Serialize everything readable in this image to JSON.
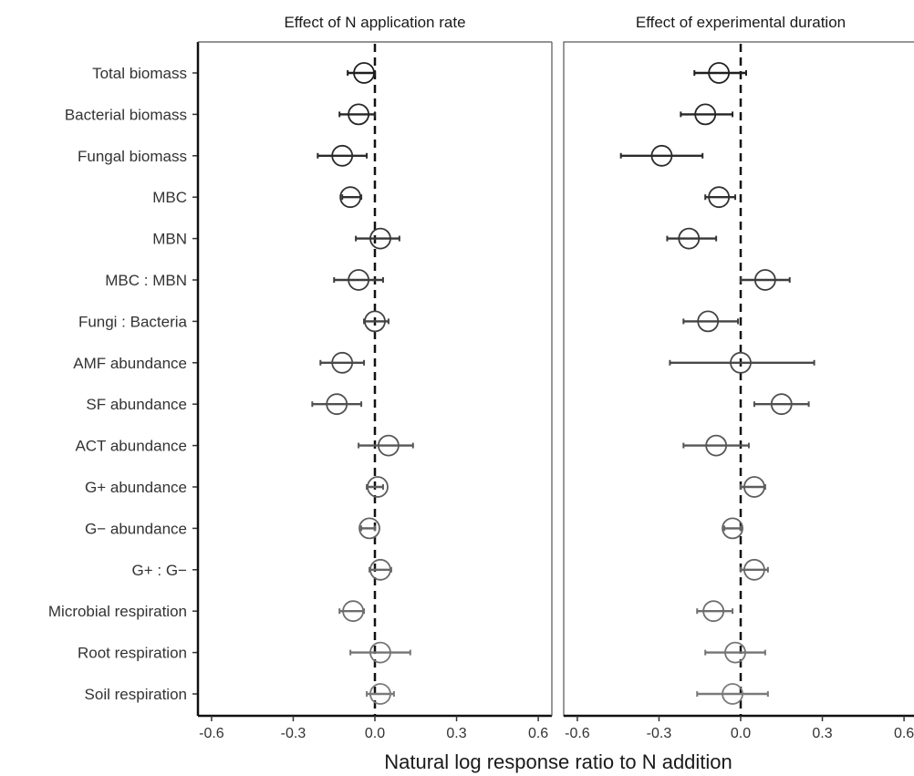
{
  "chart_data": {
    "type": "forest",
    "xlabel": "Natural log response ratio to N addition",
    "xlim": [
      -0.65,
      0.65
    ],
    "xticks": [
      -0.6,
      -0.3,
      0.0,
      0.3,
      0.6
    ],
    "xtick_labels": [
      "-0.6",
      "-0.3",
      "0.0",
      "0.3",
      "0.6"
    ],
    "reference_line": 0,
    "categories": [
      "Total biomass",
      "Bacterial biomass",
      "Fungal biomass",
      "MBC",
      "MBN",
      "MBC : MBN",
      "Fungi : Bacteria",
      "AMF abundance",
      "SF abundance",
      "ACT abundance",
      "G+ abundance",
      "G− abundance",
      "G+ : G−",
      "Microbial respiration",
      "Root respiration",
      "Soil respiration"
    ],
    "panels": [
      {
        "title": "Effect of N application rate",
        "points": [
          {
            "est": -0.04,
            "lo": -0.1,
            "hi": 0.0
          },
          {
            "est": -0.06,
            "lo": -0.13,
            "hi": 0.0
          },
          {
            "est": -0.12,
            "lo": -0.21,
            "hi": -0.03
          },
          {
            "est": -0.09,
            "lo": -0.12,
            "hi": -0.05
          },
          {
            "est": 0.02,
            "lo": -0.07,
            "hi": 0.09
          },
          {
            "est": -0.06,
            "lo": -0.15,
            "hi": 0.03
          },
          {
            "est": 0.0,
            "lo": -0.04,
            "hi": 0.05
          },
          {
            "est": -0.12,
            "lo": -0.2,
            "hi": -0.04
          },
          {
            "est": -0.14,
            "lo": -0.23,
            "hi": -0.05
          },
          {
            "est": 0.05,
            "lo": -0.06,
            "hi": 0.14
          },
          {
            "est": 0.01,
            "lo": -0.03,
            "hi": 0.03
          },
          {
            "est": -0.02,
            "lo": -0.05,
            "hi": 0.0
          },
          {
            "est": 0.02,
            "lo": -0.02,
            "hi": 0.06
          },
          {
            "est": -0.08,
            "lo": -0.13,
            "hi": -0.04
          },
          {
            "est": 0.02,
            "lo": -0.09,
            "hi": 0.13
          },
          {
            "est": 0.02,
            "lo": -0.03,
            "hi": 0.07
          }
        ]
      },
      {
        "title": "Effect of experimental duration",
        "points": [
          {
            "est": -0.08,
            "lo": -0.17,
            "hi": 0.02
          },
          {
            "est": -0.13,
            "lo": -0.22,
            "hi": -0.03
          },
          {
            "est": -0.29,
            "lo": -0.44,
            "hi": -0.14
          },
          {
            "est": -0.08,
            "lo": -0.13,
            "hi": -0.02
          },
          {
            "est": -0.19,
            "lo": -0.27,
            "hi": -0.09
          },
          {
            "est": 0.09,
            "lo": 0.0,
            "hi": 0.18
          },
          {
            "est": -0.12,
            "lo": -0.21,
            "hi": -0.01
          },
          {
            "est": 0.0,
            "lo": -0.26,
            "hi": 0.27
          },
          {
            "est": 0.15,
            "lo": 0.05,
            "hi": 0.25
          },
          {
            "est": -0.09,
            "lo": -0.21,
            "hi": 0.03
          },
          {
            "est": 0.05,
            "lo": 0.0,
            "hi": 0.09
          },
          {
            "est": -0.03,
            "lo": -0.06,
            "hi": 0.0
          },
          {
            "est": 0.05,
            "lo": 0.0,
            "hi": 0.1
          },
          {
            "est": -0.1,
            "lo": -0.16,
            "hi": -0.03
          },
          {
            "est": -0.02,
            "lo": -0.13,
            "hi": 0.09
          },
          {
            "est": -0.03,
            "lo": -0.16,
            "hi": 0.1
          }
        ]
      }
    ],
    "colors": {
      "ci_top": "#1f1f1f",
      "ci_bottom": "#7a7a7a",
      "reference_line": "#111111",
      "frame": "#222222"
    }
  }
}
